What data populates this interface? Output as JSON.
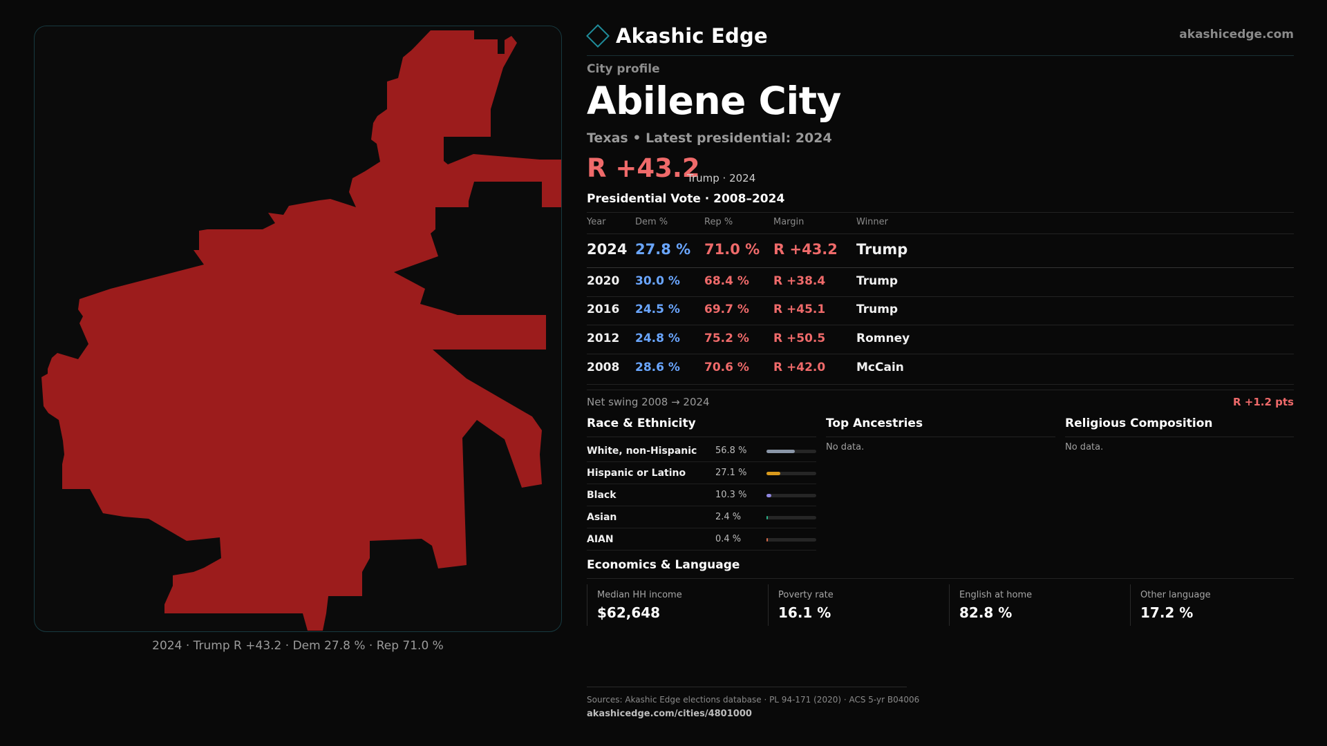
{
  "brand": {
    "name": "Akashic Edge",
    "site": "akashicedge.com"
  },
  "profile": {
    "kicker": "City profile",
    "city": "Abilene City",
    "subtitle": "Texas • Latest presidential: 2024",
    "margin_headline": "R +43.2",
    "margin_note": "Trump · 2024"
  },
  "vote_table": {
    "title": "Presidential Vote · 2008–2024",
    "headers": {
      "year": "Year",
      "dem": "Dem %",
      "rep": "Rep %",
      "margin": "Margin",
      "winner": "Winner"
    },
    "rows": [
      {
        "year": "2024",
        "dem": "27.8 %",
        "rep": "71.0 %",
        "margin": "R +43.2",
        "winner": "Trump"
      },
      {
        "year": "2020",
        "dem": "30.0 %",
        "rep": "68.4 %",
        "margin": "R +38.4",
        "winner": "Trump"
      },
      {
        "year": "2016",
        "dem": "24.5 %",
        "rep": "69.7 %",
        "margin": "R +45.1",
        "winner": "Trump"
      },
      {
        "year": "2012",
        "dem": "24.8 %",
        "rep": "75.2 %",
        "margin": "R +50.5",
        "winner": "Romney"
      },
      {
        "year": "2008",
        "dem": "28.6 %",
        "rep": "70.6 %",
        "margin": "R +42.0",
        "winner": "McCain"
      }
    ]
  },
  "swing": {
    "label": "Net swing 2008 → 2024",
    "value": "R +1.2 pts"
  },
  "race": {
    "title": "Race & Ethnicity",
    "rows": [
      {
        "name": "White, non-Hispanic",
        "pct": "56.8 %",
        "fraction": 0.568,
        "color": "#8a96a8"
      },
      {
        "name": "Hispanic or Latino",
        "pct": "27.1 %",
        "fraction": 0.271,
        "color": "#d99a1c"
      },
      {
        "name": "Black",
        "pct": "10.3 %",
        "fraction": 0.103,
        "color": "#8f86e0"
      },
      {
        "name": "Asian",
        "pct": "2.4 %",
        "fraction": 0.024,
        "color": "#2bb38a"
      },
      {
        "name": "AIAN",
        "pct": "0.4 %",
        "fraction": 0.004,
        "color": "#d86a4a"
      }
    ]
  },
  "ancestries": {
    "title": "Top Ancestries",
    "empty": "No data."
  },
  "religion": {
    "title": "Religious Composition",
    "empty": "No data."
  },
  "economics": {
    "title": "Economics & Language",
    "items": [
      {
        "label": "Median HH income",
        "value": "$62,648"
      },
      {
        "label": "Poverty rate",
        "value": "16.1 %"
      },
      {
        "label": "English at home",
        "value": "82.8 %"
      },
      {
        "label": "Other language",
        "value": "17.2 %"
      }
    ]
  },
  "map": {
    "caption": "2024 · Trump R +43.2 · Dem 27.8 % · Rep 71.0 %",
    "fill_color": "#9c1c1c"
  },
  "sources": {
    "text": "Sources: Akashic Edge elections database · PL 94-171 (2020) · ACS 5-yr B04006",
    "url": "akashicedge.com/cities/4801000"
  }
}
